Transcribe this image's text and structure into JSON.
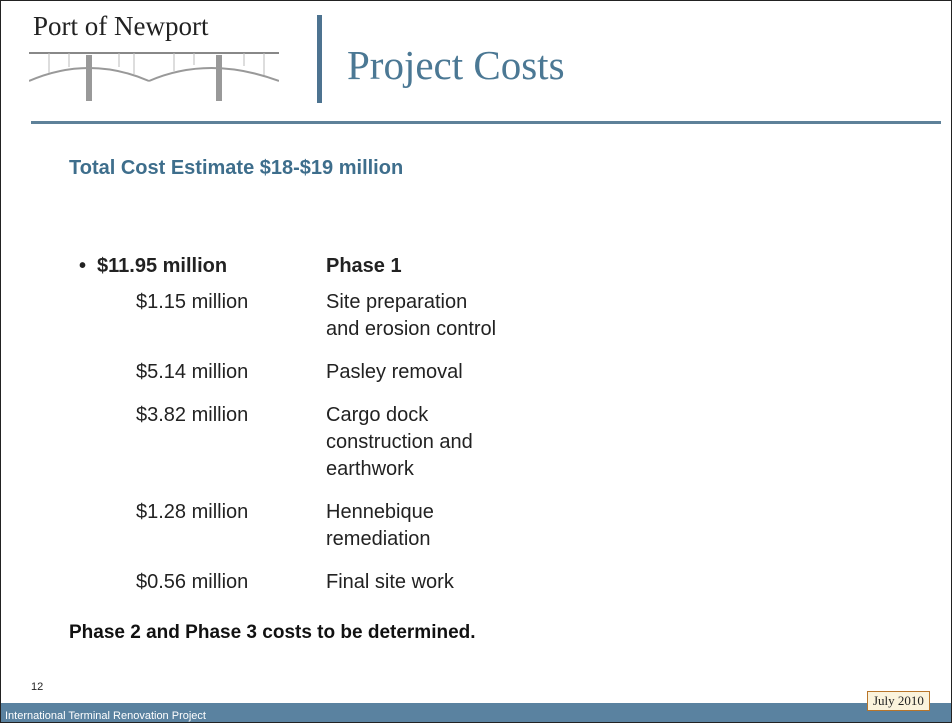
{
  "header": {
    "logo": "Port of Newport",
    "title": "Project Costs"
  },
  "subtitle": "Total Cost Estimate $18-$19 million",
  "summary": {
    "amount": "$11.95 million",
    "label": "Phase 1"
  },
  "items": [
    {
      "amount": "$1.15 million",
      "description": [
        "Site preparation",
        "and erosion control"
      ]
    },
    {
      "amount": "$5.14 million",
      "description": [
        "Pasley removal"
      ]
    },
    {
      "amount": "$3.82 million",
      "description": [
        "Cargo dock",
        "construction and",
        "earthwork"
      ]
    },
    {
      "amount": "$1.28 million",
      "description": [
        "Hennebique",
        "remediation"
      ]
    },
    {
      "amount": "$0.56 million",
      "description": [
        "Final site work"
      ]
    }
  ],
  "note": "Phase 2 and Phase 3 costs to be determined.",
  "footer": {
    "page": "12",
    "date": "July 2010",
    "project": "International Terminal Renovation Project"
  }
}
